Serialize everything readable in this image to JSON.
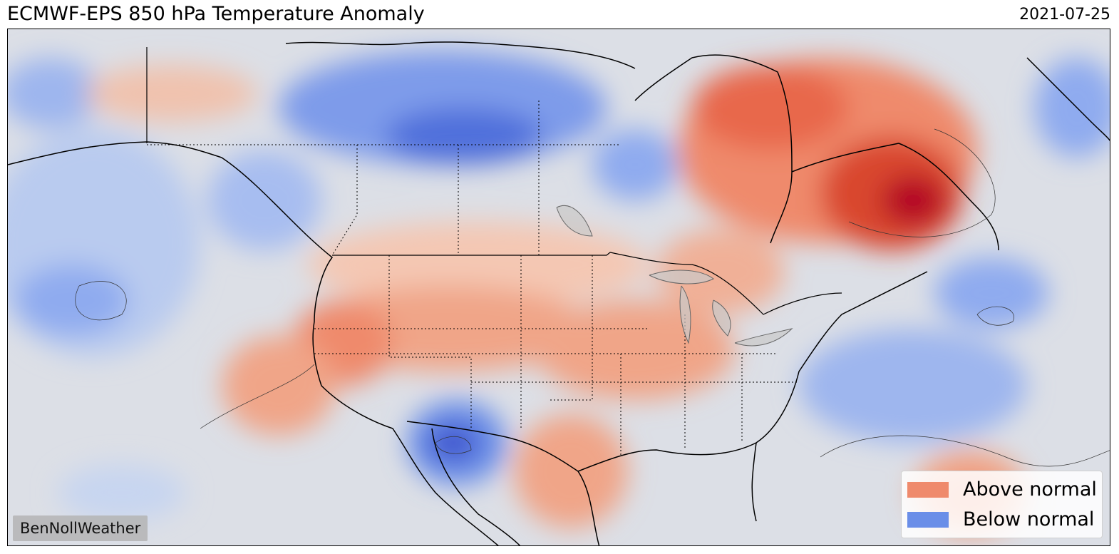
{
  "header": {
    "title": "ECMWF-EPS 850 hPa Temperature Anomaly",
    "date": "2021-07-25"
  },
  "legend": {
    "items": [
      {
        "label": "Above normal",
        "color": "#ef8a6c"
      },
      {
        "label": "Below normal",
        "color": "#6a8ee8"
      }
    ]
  },
  "credit": "BenNollWeather",
  "colors": {
    "neutral": "#dcdfe6",
    "warm_light": "#f0c2ae",
    "warm": "#ef8a6c",
    "warm_strong": "#d9472f",
    "warm_max": "#b40426",
    "cool_light": "#c7d5f0",
    "cool": "#8fabef",
    "cool_strong": "#4f6fdb",
    "cool_max": "#3a4fcc",
    "coast": "#000000"
  }
}
